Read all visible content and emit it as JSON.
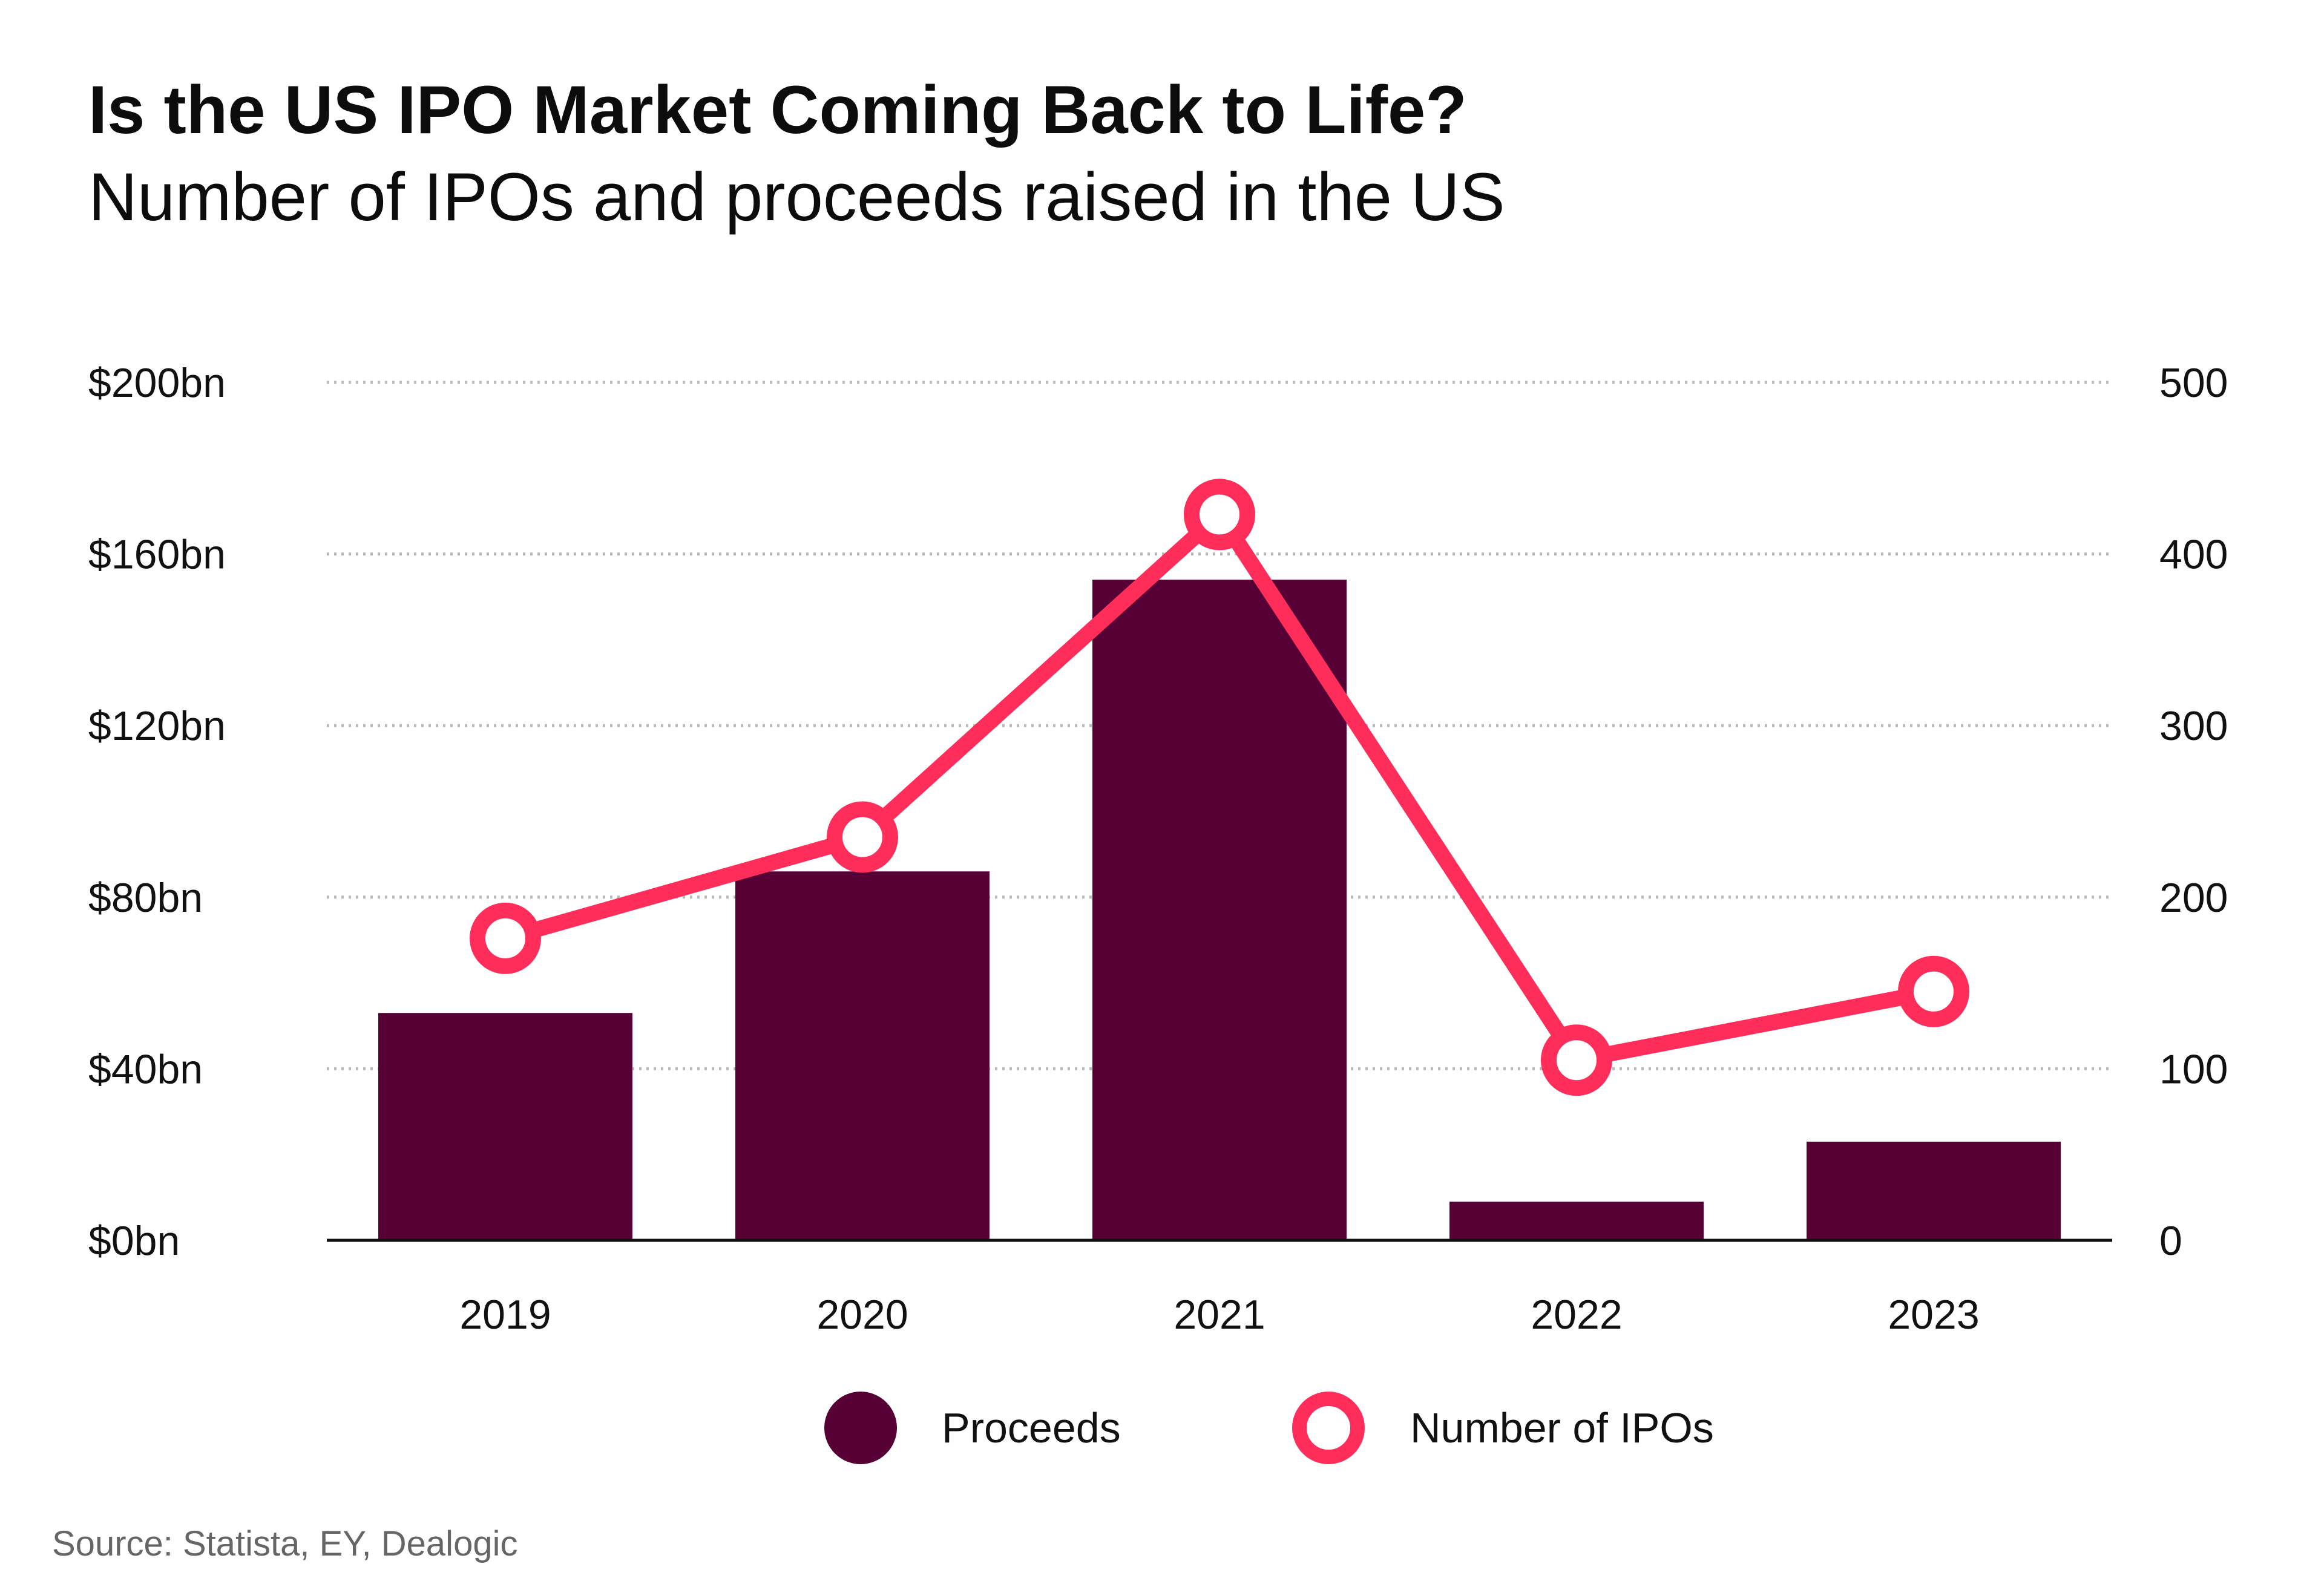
{
  "header": {
    "title": "Is the US IPO Market Coming Back to Life?",
    "subtitle": "Number of IPOs and proceeds raised in the US"
  },
  "footer": {
    "source": "Source: Statista, EY, Dealogic"
  },
  "colors": {
    "bar": "#560036",
    "line": "#ff2d5a",
    "grid": "#bbbbbb",
    "axis": "#111111"
  },
  "chart_data": {
    "type": "bar",
    "categories": [
      "2019",
      "2020",
      "2021",
      "2022",
      "2023"
    ],
    "series": [
      {
        "name": "Proceeds",
        "type": "bar",
        "axis": "left",
        "values": [
          53,
          86,
          154,
          9,
          23
        ]
      },
      {
        "name": "Number of IPOs",
        "type": "line",
        "axis": "right",
        "values": [
          176,
          235,
          423,
          105,
          145
        ]
      }
    ],
    "y_left": {
      "ylim": [
        0,
        200
      ],
      "ticks": [
        "$0bn",
        "$40bn",
        "$80bn",
        "$120bn",
        "$160bn",
        "$200bn"
      ]
    },
    "y_right": {
      "ylim": [
        0,
        500
      ],
      "ticks": [
        "0",
        "100",
        "200",
        "300",
        "400",
        "500"
      ]
    },
    "grid": true,
    "legend": {
      "placement": "bottom",
      "entries": [
        "Proceeds",
        "Number of IPOs"
      ]
    }
  }
}
